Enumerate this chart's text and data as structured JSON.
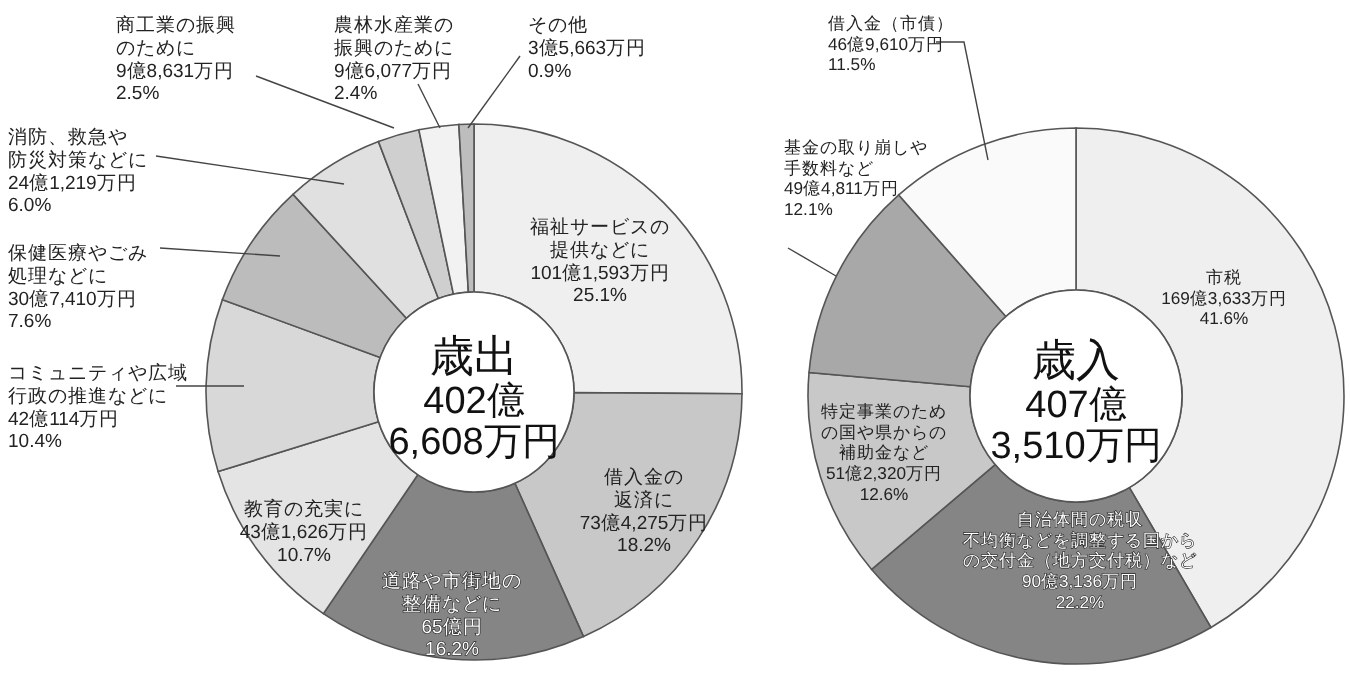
{
  "chart_data": [
    {
      "type": "donut",
      "title": "歳出",
      "subtitle": "402億\n6,608万円",
      "categories": [
        "福祉サービスの提供などに",
        "借入金の返済に",
        "道路や市街地の整備などに",
        "教育の充実に",
        "コミュニティや広域行政の推進などに",
        "保健医療やごみ処理などに",
        "消防、救急や防災対策などに",
        "商工業の振興のために",
        "農林水産業の振興のために",
        "その他"
      ],
      "values": [
        25.1,
        18.2,
        16.2,
        10.7,
        10.4,
        7.6,
        6.0,
        2.5,
        2.4,
        0.9
      ],
      "colors": [
        "#efefef",
        "#c8c8c8",
        "#858585",
        "#e4e4e4",
        "#d8d8d8",
        "#bcbcbc",
        "#e0e0e0",
        "#cfcfcf",
        "#f2f2f2",
        "#bdbdbd"
      ],
      "value_labels": [
        "101億1,593万円\n25.1%",
        "73億4,275万円\n18.2%",
        "65億円\n16.2%",
        "43億1,626万円\n10.7%",
        "42億114万円\n10.4%",
        "30億7,410万円\n7.6%",
        "24億1,219万円\n6.0%",
        "9億8,631万円\n2.5%",
        "9億6,077万円\n2.4%",
        "3億5,663万円\n0.9%"
      ]
    },
    {
      "type": "donut",
      "title": "歳入",
      "subtitle": "407億\n3,510万円",
      "categories": [
        "市税",
        "自治体間の税収不均衡などを調整する国からの交付金（地方交付税）など",
        "特定事業のための国や県からの補助金など",
        "基金の取り崩しや手数料など",
        "借入金（市債）"
      ],
      "values": [
        41.6,
        22.2,
        12.6,
        12.1,
        11.5
      ],
      "colors": [
        "#efefef",
        "#858585",
        "#c8c8c8",
        "#a8a8a8",
        "#fafafa"
      ],
      "value_labels": [
        "169億3,633万円\n41.6%",
        "90億3,136万円\n22.2%",
        "51億2,320万円\n12.6%",
        "49億4,811万円\n12.1%",
        "46億9,610万円\n11.5%"
      ]
    }
  ]
}
